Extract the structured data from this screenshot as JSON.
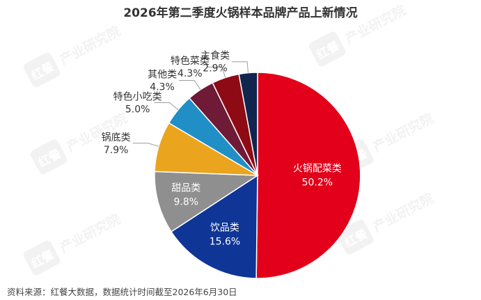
{
  "chart_data": {
    "type": "pie",
    "title": "2026年第二季度火锅样本品牌产品上新情况",
    "source": "资料来源：红餐大数据，数据统计时间截至2026年6月30日",
    "watermark": {
      "logo": "红餐",
      "text": "产业研究院"
    },
    "slices": [
      {
        "label": "火锅配菜类",
        "value": 50.2,
        "display": "50.2%",
        "color": "#e2001a"
      },
      {
        "label": "饮品类",
        "value": 15.6,
        "display": "15.6%",
        "color": "#0f3596"
      },
      {
        "label": "甜品类",
        "value": 9.8,
        "display": "9.8%",
        "color": "#8f8f8f"
      },
      {
        "label": "锅底类",
        "value": 7.9,
        "display": "7.9%",
        "color": "#eaa41e"
      },
      {
        "label": "特色小吃类",
        "value": 5.0,
        "display": "5.0%",
        "color": "#1f8fc6"
      },
      {
        "label": "其他类",
        "value": 4.3,
        "display": "4.3%",
        "color": "#6f1a37"
      },
      {
        "label": "特色菜类",
        "value": 4.3,
        "display": "4.3%",
        "color": "#8e0a14"
      },
      {
        "label": "主食类",
        "value": 2.9,
        "display": "2.9%",
        "color": "#10264f"
      }
    ],
    "start_angle_deg": 0,
    "direction": "clockwise",
    "legend": "none"
  }
}
